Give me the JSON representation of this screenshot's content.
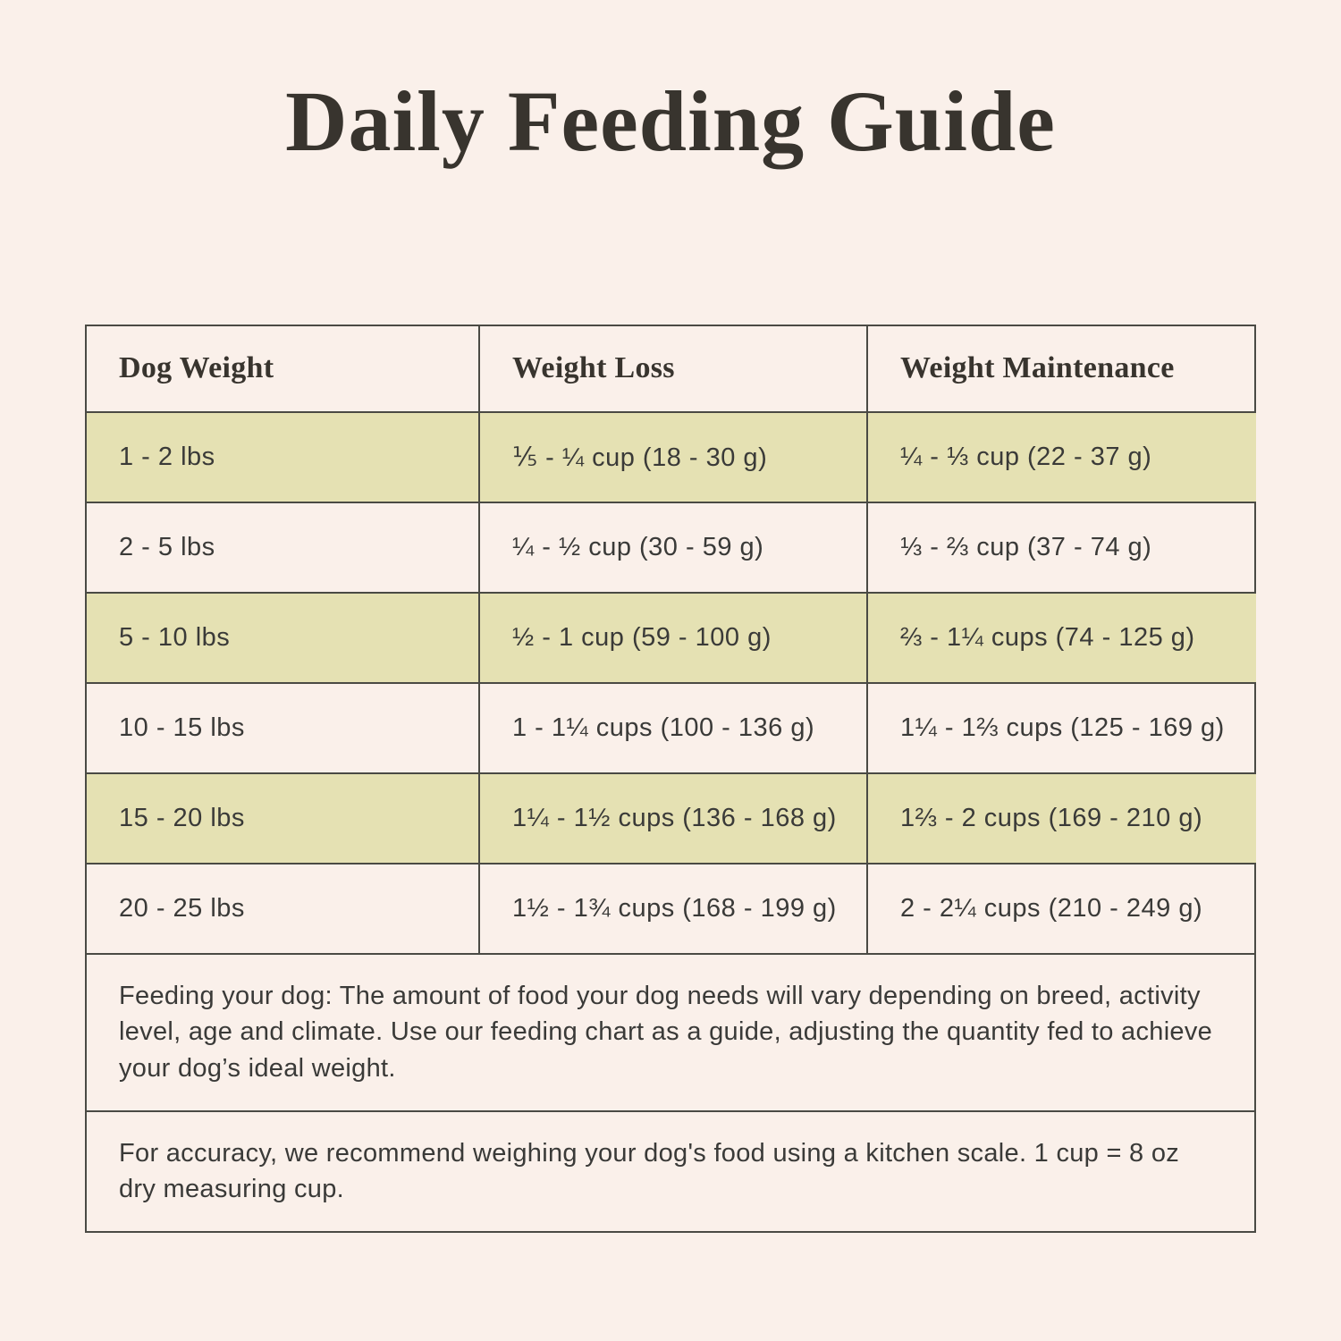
{
  "page": {
    "title": "Daily Feeding Guide",
    "colors": {
      "background": "#faf0ea",
      "row_highlight": "#e5e1b3",
      "border": "#4a4a44",
      "heading_text": "#38342e",
      "body_text": "#3a3a38"
    }
  },
  "table": {
    "headers": [
      "Dog Weight",
      "Weight Loss",
      "Weight Maintenance"
    ],
    "rows": [
      {
        "weight": "1 - 2 lbs",
        "loss": "⅕ - ¼ cup (18 - 30 g)",
        "maintenance": "¼ - ⅓ cup (22 - 37 g)"
      },
      {
        "weight": "2 - 5 lbs",
        "loss": "¼ - ½ cup (30 - 59 g)",
        "maintenance": "⅓ - ⅔ cup (37 - 74 g)"
      },
      {
        "weight": "5 - 10 lbs",
        "loss": "½ - 1 cup (59 - 100 g)",
        "maintenance": "⅔ - 1¼ cups (74 - 125 g)"
      },
      {
        "weight": "10 - 15 lbs",
        "loss": "1 - 1¼ cups (100 - 136 g)",
        "maintenance": "1¼ - 1⅔ cups (125 - 169 g)"
      },
      {
        "weight": "15 - 20 lbs",
        "loss": "1¼ - 1½ cups (136 - 168 g)",
        "maintenance": "1⅔ - 2 cups (169 - 210 g)"
      },
      {
        "weight": "20 - 25 lbs",
        "loss": "1½ - 1¾ cups (168 - 199 g)",
        "maintenance": "2 - 2¼ cups (210 - 249 g)"
      }
    ]
  },
  "notes": [
    "Feeding your dog: The amount of food your dog needs will vary depending on breed, activity level, age and climate. Use our feeding chart as a guide, adjusting the quantity fed to achieve your dog’s ideal weight.",
    "For accuracy, we recommend weighing your dog's food using a kitchen scale. 1 cup = 8 oz dry measuring cup."
  ]
}
